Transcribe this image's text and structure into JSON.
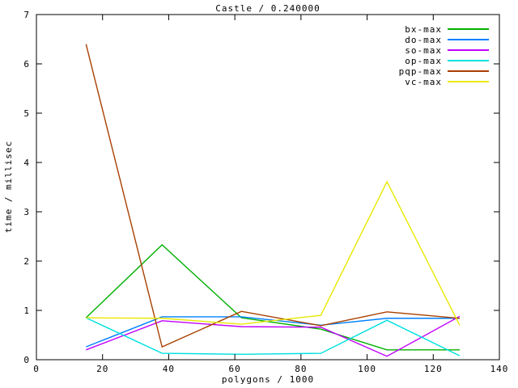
{
  "window": {
    "background": "#ffffff",
    "foreground": "#000000"
  },
  "chart_data": {
    "type": "line",
    "title": "Castle / 0.240000",
    "xlabel": "polygons / 1000",
    "ylabel": "time / millisec",
    "xlim": [
      0,
      140
    ],
    "ylim": [
      0,
      7
    ],
    "xticks": [
      0,
      20,
      40,
      60,
      80,
      100,
      120,
      140
    ],
    "yticks": [
      0,
      1,
      2,
      3,
      4,
      5,
      6,
      7
    ],
    "grid": false,
    "legend_position": "top-right-inside",
    "x": [
      15,
      38,
      62,
      86,
      106,
      128
    ],
    "series": [
      {
        "name": "bx-max",
        "color": "#00b000",
        "values": [
          0.85,
          2.33,
          0.85,
          0.62,
          0.2,
          0.2
        ]
      },
      {
        "name": "do-max",
        "color": "#0080ff",
        "values": [
          0.26,
          0.87,
          0.87,
          0.7,
          0.84,
          0.84
        ]
      },
      {
        "name": "so-max",
        "color": "#c000ff",
        "values": [
          0.2,
          0.79,
          0.67,
          0.66,
          0.07,
          0.88
        ]
      },
      {
        "name": "op-max",
        "color": "#00e0e0",
        "values": [
          0.85,
          0.13,
          0.11,
          0.13,
          0.8,
          0.08
        ]
      },
      {
        "name": "pqp-max",
        "color": "#a84000",
        "values": [
          6.4,
          0.26,
          0.98,
          0.69,
          0.97,
          0.84
        ]
      },
      {
        "name": "vc-max",
        "color": "#e8e800",
        "values": [
          0.85,
          0.84,
          0.72,
          0.9,
          3.61,
          0.7
        ]
      }
    ]
  }
}
